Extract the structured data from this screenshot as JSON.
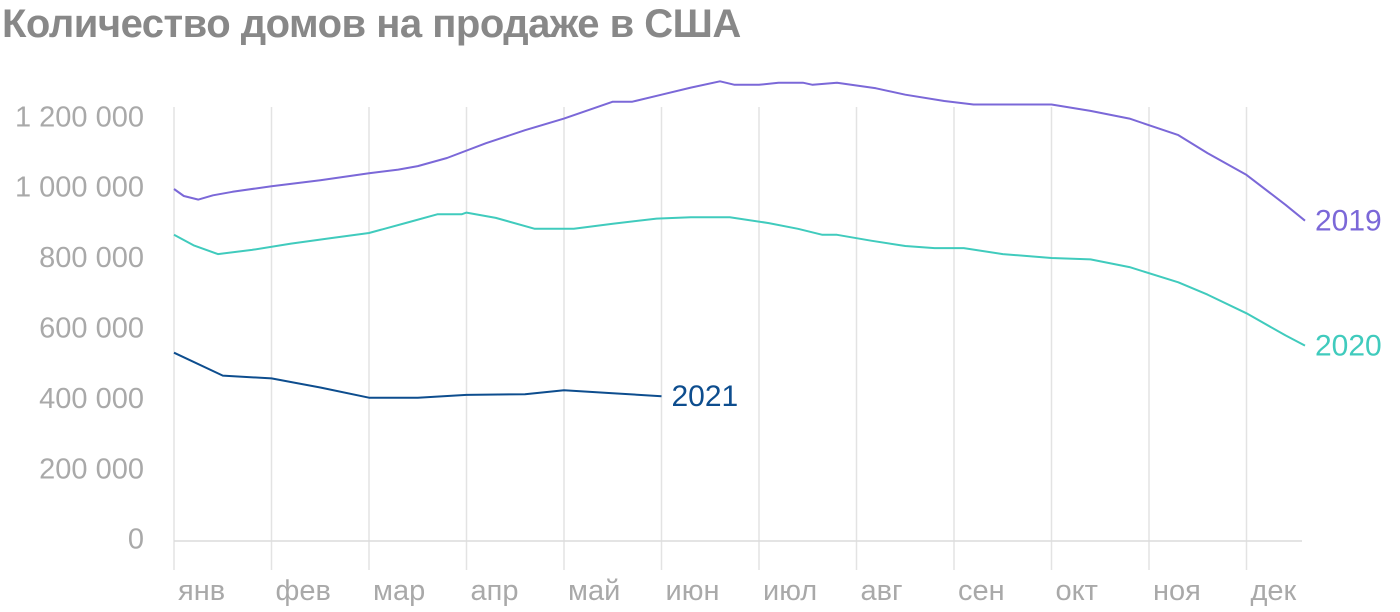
{
  "chart_data": {
    "type": "line",
    "title": "Количество домов на продаже в США",
    "xlabel": "",
    "ylabel": "",
    "categories": [
      "янв",
      "фев",
      "мар",
      "апр",
      "май",
      "июн",
      "июл",
      "авг",
      "сен",
      "окт",
      "ноя",
      "дек"
    ],
    "ylim": [
      0,
      1200000
    ],
    "yticks": [
      "0",
      "200 000",
      "400 000",
      "600 000",
      "800 000",
      "1 000 000",
      "1 200 000"
    ],
    "grid": "vertical",
    "legend": "series labels at line ends",
    "series": [
      {
        "name": "2019",
        "color": "#7b68d8",
        "points": [
          [
            0,
            1000000
          ],
          [
            0.1,
            980000
          ],
          [
            0.25,
            970000
          ],
          [
            0.4,
            982000
          ],
          [
            0.6,
            992000
          ],
          [
            1,
            1008000
          ],
          [
            1.5,
            1025000
          ],
          [
            2,
            1045000
          ],
          [
            2.3,
            1055000
          ],
          [
            2.5,
            1065000
          ],
          [
            2.8,
            1088000
          ],
          [
            3.2,
            1130000
          ],
          [
            3.6,
            1167000
          ],
          [
            4,
            1200000
          ],
          [
            4.5,
            1248000
          ],
          [
            4.7,
            1248000
          ],
          [
            5,
            1268000
          ],
          [
            5.3,
            1288000
          ],
          [
            5.6,
            1306000
          ],
          [
            5.75,
            1296000
          ],
          [
            6,
            1296000
          ],
          [
            6.2,
            1302000
          ],
          [
            6.45,
            1302000
          ],
          [
            6.55,
            1296000
          ],
          [
            6.8,
            1302000
          ],
          [
            7.2,
            1286000
          ],
          [
            7.5,
            1268000
          ],
          [
            7.9,
            1250000
          ],
          [
            8.2,
            1240000
          ],
          [
            8.6,
            1240000
          ],
          [
            9,
            1240000
          ],
          [
            9.4,
            1222000
          ],
          [
            9.8,
            1200000
          ],
          [
            10.3,
            1153000
          ],
          [
            10.6,
            1102000
          ],
          [
            11,
            1040000
          ],
          [
            11.4,
            955000
          ],
          [
            11.6,
            910000
          ]
        ]
      },
      {
        "name": "2020",
        "color": "#40cbbd",
        "points": [
          [
            0,
            870000
          ],
          [
            0.2,
            840000
          ],
          [
            0.45,
            815000
          ],
          [
            0.8,
            827000
          ],
          [
            1.2,
            845000
          ],
          [
            1.6,
            860000
          ],
          [
            2,
            875000
          ],
          [
            2.4,
            905000
          ],
          [
            2.7,
            928000
          ],
          [
            2.95,
            928000
          ],
          [
            3,
            933000
          ],
          [
            3.3,
            918000
          ],
          [
            3.7,
            887000
          ],
          [
            4.1,
            887000
          ],
          [
            4.5,
            901000
          ],
          [
            4.95,
            916000
          ],
          [
            5.3,
            920000
          ],
          [
            5.7,
            920000
          ],
          [
            6.1,
            903000
          ],
          [
            6.4,
            887000
          ],
          [
            6.65,
            870000
          ],
          [
            6.8,
            870000
          ],
          [
            7.15,
            853000
          ],
          [
            7.5,
            838000
          ],
          [
            7.8,
            832000
          ],
          [
            8.1,
            832000
          ],
          [
            8.5,
            815000
          ],
          [
            9,
            804000
          ],
          [
            9.4,
            800000
          ],
          [
            9.8,
            778000
          ],
          [
            10.3,
            735000
          ],
          [
            10.6,
            700000
          ],
          [
            11,
            647000
          ],
          [
            11.4,
            584000
          ],
          [
            11.6,
            555000
          ]
        ]
      },
      {
        "name": "2021",
        "color": "#0d4d8e",
        "points": [
          [
            0,
            535000
          ],
          [
            0.5,
            470000
          ],
          [
            1,
            462000
          ],
          [
            1.5,
            436000
          ],
          [
            2,
            407000
          ],
          [
            2.5,
            407000
          ],
          [
            3,
            415000
          ],
          [
            3.6,
            417000
          ],
          [
            4,
            428000
          ],
          [
            4.5,
            420000
          ],
          [
            5,
            411000
          ]
        ]
      }
    ]
  }
}
